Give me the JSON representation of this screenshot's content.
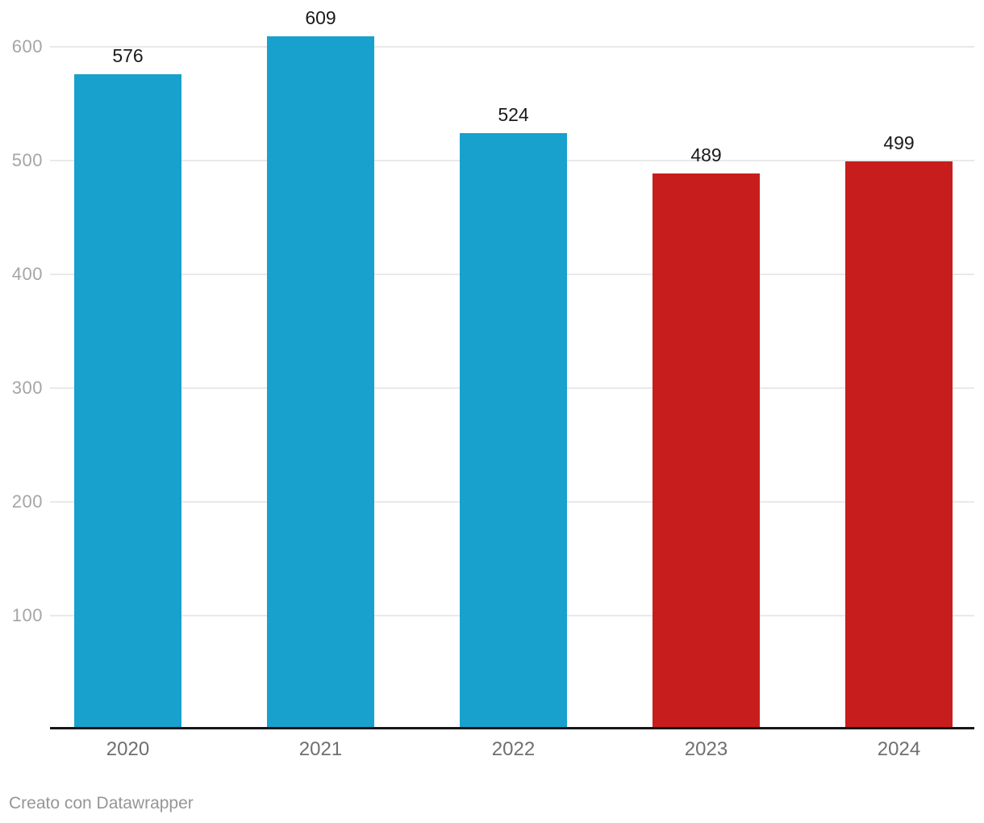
{
  "chart_data": {
    "type": "bar",
    "categories": [
      "2020",
      "2021",
      "2022",
      "2023",
      "2024"
    ],
    "values": [
      576,
      609,
      524,
      489,
      499
    ],
    "bar_colors": [
      "#18a1cd",
      "#18a1cd",
      "#18a1cd",
      "#c71e1d",
      "#c71e1d"
    ],
    "title": "",
    "xlabel": "",
    "ylabel": "",
    "ylim": [
      0,
      640
    ],
    "yticks": [
      100,
      200,
      300,
      400,
      500,
      600
    ],
    "grid": true,
    "legend": false,
    "value_labels_shown": true
  },
  "colors": {
    "blue": "#18a1cd",
    "red": "#c71e1d",
    "gridline": "#e9e9e9",
    "axis_line": "#161616",
    "tick_label": "#a5a5a5",
    "category_label": "#6f6f6f",
    "value_label": "#1a1a1a",
    "footer_text": "#969696",
    "background": "#ffffff"
  },
  "footer": {
    "credit": "Creato con Datawrapper"
  }
}
